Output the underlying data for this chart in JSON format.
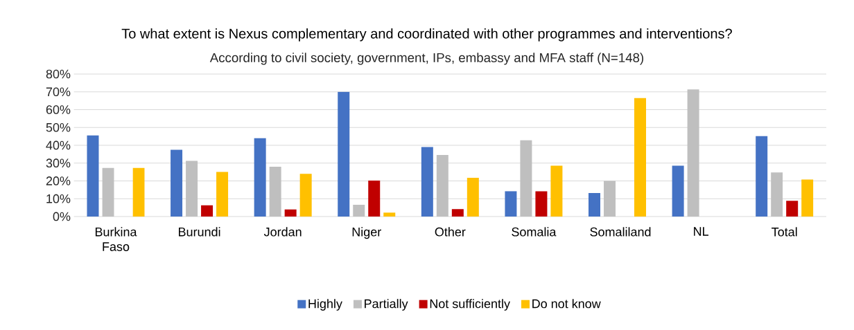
{
  "chart_data": {
    "type": "bar",
    "title": "To what extent is Nexus complementary and coordinated with other programmes and interventions?",
    "subtitle": "According to civil society, government, IPs, embassy and MFA staff (N=148)",
    "categories": [
      "Burkina Faso",
      "Burundi",
      "Jordan",
      "Niger",
      "Other",
      "Somalia",
      "Somaliland",
      "NL",
      "Total"
    ],
    "series": [
      {
        "name": "Highly",
        "color": "#4472c4",
        "values": [
          45.5,
          37.5,
          44,
          70,
          39,
          14.2,
          13.2,
          28.5,
          45.1
        ]
      },
      {
        "name": "Partially",
        "color": "#bfbfbf",
        "values": [
          27.3,
          31.3,
          28,
          6.6,
          34.6,
          42.8,
          20,
          71.4,
          24.8
        ]
      },
      {
        "name": "Not sufficiently",
        "color": "#c00000",
        "values": [
          0,
          6.3,
          4,
          20.2,
          4.2,
          14.2,
          0,
          0,
          8.8
        ]
      },
      {
        "name": "Do not know",
        "color": "#ffc000",
        "values": [
          27.3,
          25,
          24,
          2.2,
          21.7,
          28.5,
          66.5,
          0,
          20.8
        ]
      }
    ],
    "ylim": [
      0,
      80
    ],
    "yticks": [
      {
        "value": 0,
        "label": "0%"
      },
      {
        "value": 10,
        "label": "10%"
      },
      {
        "value": 20,
        "label": "20%"
      },
      {
        "value": 30,
        "label": "30%"
      },
      {
        "value": 40,
        "label": "40%"
      },
      {
        "value": 50,
        "label": "50%"
      },
      {
        "value": 60,
        "label": "60%"
      },
      {
        "value": 70,
        "label": "70%"
      },
      {
        "value": 80,
        "label": "80%"
      }
    ],
    "grid": "y",
    "legend": "bottom"
  }
}
